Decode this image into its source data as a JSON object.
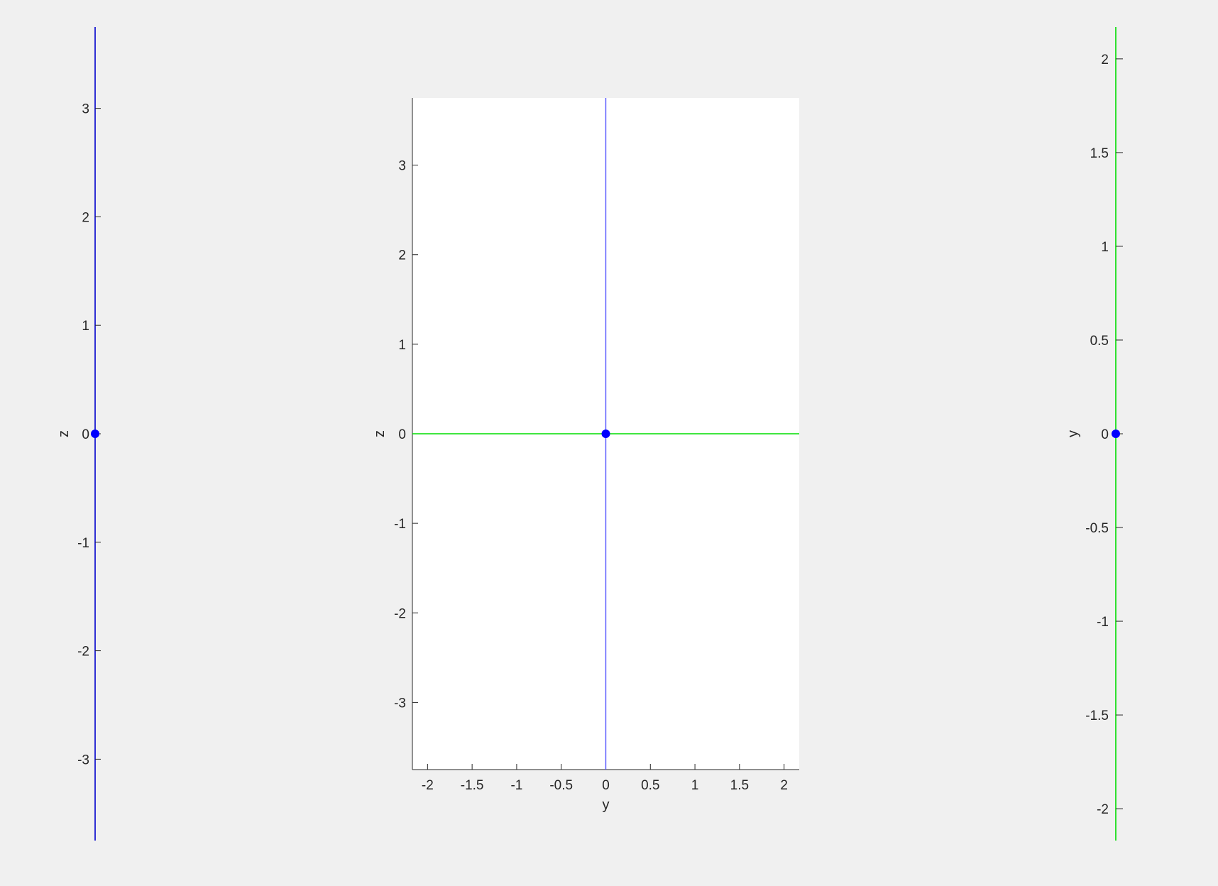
{
  "colors": {
    "figure_background": "#f0f0f0",
    "axes_background": "#ffffff",
    "axis_text": "#262626",
    "blue_line": "#0000cc",
    "green_line": "#00dd00",
    "marker": "#0000ff"
  },
  "chart_data": [
    {
      "type": "line",
      "panel": "left-strip",
      "xlabel": "",
      "ylabel": "z",
      "ylim": [
        -3.75,
        3.75
      ],
      "yticks": [
        -3,
        -2,
        -1,
        0,
        1,
        2,
        3
      ],
      "ytick_labels": [
        "-3",
        "-2",
        "-1",
        "0",
        "1",
        "2",
        "3"
      ],
      "line_color": "blue",
      "series": [
        {
          "values_x": [
            0,
            0
          ],
          "values_y": [
            -3.75,
            3.75
          ],
          "color": "#0000cc"
        }
      ],
      "points": [
        {
          "y": 0,
          "color": "#0000ff"
        }
      ]
    },
    {
      "type": "line",
      "panel": "center",
      "xlabel": "y",
      "ylabel": "z",
      "xlim": [
        -2.17,
        2.17
      ],
      "ylim": [
        -3.75,
        3.75
      ],
      "xticks": [
        -2,
        -1.5,
        -1,
        -0.5,
        0,
        0.5,
        1,
        1.5,
        2
      ],
      "xtick_labels": [
        "-2",
        "-1.5",
        "-1",
        "-0.5",
        "0",
        "0.5",
        "1",
        "1.5",
        "2"
      ],
      "yticks": [
        -3,
        -2,
        -1,
        0,
        1,
        2,
        3
      ],
      "ytick_labels": [
        "-3",
        "-2",
        "-1",
        "0",
        "1",
        "2",
        "3"
      ],
      "grid": false,
      "series": [
        {
          "x": [
            0,
            0
          ],
          "y": [
            -3.75,
            3.75
          ],
          "color": "#5555ff"
        },
        {
          "x": [
            -2.17,
            2.17
          ],
          "y": [
            0,
            0
          ],
          "color": "#00dd00"
        }
      ],
      "points": [
        {
          "x": 0,
          "y": 0,
          "color": "#0000ff"
        }
      ]
    },
    {
      "type": "line",
      "panel": "right-strip",
      "xlabel": "",
      "ylabel": "y",
      "ylim": [
        -2.17,
        2.17
      ],
      "yticks": [
        -2,
        -1.5,
        -1,
        -0.5,
        0,
        0.5,
        1,
        1.5,
        2
      ],
      "ytick_labels": [
        "-2",
        "-1.5",
        "-1",
        "-0.5",
        "0",
        "0.5",
        "1",
        "1.5",
        "2"
      ],
      "line_color": "green",
      "series": [
        {
          "values_x": [
            0,
            0
          ],
          "values_y": [
            -2.17,
            2.17
          ],
          "color": "#00dd00"
        }
      ],
      "points": [
        {
          "y": 0,
          "color": "#0000ff"
        }
      ]
    }
  ]
}
